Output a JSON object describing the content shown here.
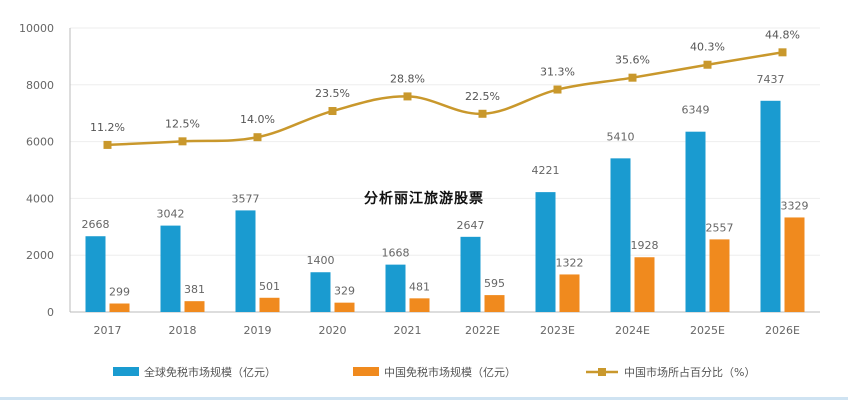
{
  "overlay_title": "分析丽江旅游股票",
  "colors": {
    "global_bar": "#1a9bd0",
    "global_bar_light": "#9fd5ea",
    "china_bar": "#f08a1e",
    "china_bar_light": "#f6c38e",
    "line": "#c9982c",
    "grid": "#eeeeee",
    "axis": "#bbbbbb"
  },
  "chart_data": {
    "type": "bar",
    "categories": [
      "2017",
      "2018",
      "2019",
      "2020",
      "2021",
      "2022E",
      "2023E",
      "2024E",
      "2025E",
      "2026E"
    ],
    "ylim": [
      0,
      10000
    ],
    "yticks": [
      "0",
      "2000",
      "4000",
      "6000",
      "8000",
      "10000"
    ],
    "series": [
      {
        "name": "全球免税市场规模（亿元）",
        "type": "bar",
        "values": [
          2668,
          3042,
          3577,
          1400,
          1668,
          2647,
          4221,
          5410,
          6349,
          7437
        ],
        "labels": [
          "2668",
          "3042",
          "3577",
          "1400",
          "1668",
          "2647",
          "4221",
          "5410",
          "6349",
          "7437"
        ]
      },
      {
        "name": "中国免税市场规模（亿元）",
        "type": "bar",
        "values": [
          299,
          381,
          501,
          329,
          481,
          595,
          1322,
          1928,
          2557,
          3329
        ],
        "labels": [
          "299",
          "381",
          "501",
          "329",
          "481",
          "595",
          "1322",
          "1928",
          "2557",
          "3329"
        ]
      },
      {
        "name": "中国市场所占百分比（%）",
        "type": "line",
        "values": [
          11.2,
          12.5,
          14.0,
          23.5,
          28.8,
          22.5,
          31.3,
          35.6,
          40.3,
          44.8
        ],
        "labels": [
          "11.2%",
          "12.5%",
          "14.0%",
          "23.5%",
          "28.8%",
          "22.5%",
          "31.3%",
          "35.6%",
          "40.3%",
          "44.8%"
        ]
      }
    ],
    "legend_position": "bottom"
  }
}
